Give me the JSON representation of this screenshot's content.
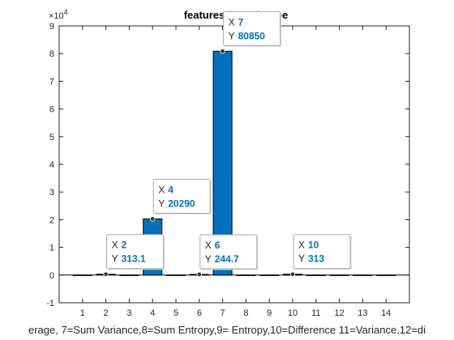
{
  "chart_data": {
    "type": "bar",
    "title": "features for 0 degree",
    "xlabel": "erage, 7=Sum Variance,8=Sum Entropy,9= Entropy,10=Difference 11=Variance,12=di",
    "ylabel": "",
    "y_exponent_label": "×10",
    "y_exponent_power": "4",
    "xlim": [
      0,
      15
    ],
    "ylim": [
      -10000,
      90000
    ],
    "xticks": [
      1,
      2,
      3,
      4,
      5,
      6,
      7,
      8,
      9,
      10,
      11,
      12,
      13,
      14
    ],
    "xtick_labels": [
      "1",
      "2",
      "3",
      "4",
      "5",
      "6",
      "7",
      "8",
      "9",
      "10",
      "11",
      "12",
      "13",
      "14"
    ],
    "yticks": [
      -10000,
      0,
      10000,
      20000,
      30000,
      40000,
      50000,
      60000,
      70000,
      80000,
      90000
    ],
    "ytick_labels": [
      "-1",
      "0",
      "1",
      "2",
      "3",
      "4",
      "5",
      "6",
      "7",
      "8",
      "9"
    ],
    "grid": false,
    "bar_color": "#0072bd",
    "categories": [
      1,
      2,
      3,
      4,
      5,
      6,
      7,
      8,
      9,
      10,
      11,
      12,
      13,
      14
    ],
    "values": [
      0,
      313.1,
      0,
      20290,
      0,
      244.7,
      80850,
      0,
      0,
      313,
      0,
      0,
      0,
      0
    ],
    "datatips": [
      {
        "x": 2,
        "y": 313.1,
        "x_key": "X",
        "y_key": "Y",
        "x_text": "2",
        "y_text": "313.1"
      },
      {
        "x": 4,
        "y": 20290,
        "x_key": "X",
        "y_key": "Y",
        "x_text": "4",
        "y_text": "20290"
      },
      {
        "x": 6,
        "y": 244.7,
        "x_key": "X",
        "y_key": "Y",
        "x_text": "6",
        "y_text": "244.7"
      },
      {
        "x": 7,
        "y": 80850,
        "x_key": "X",
        "y_key": "Y",
        "x_text": "7",
        "y_text": "80850"
      },
      {
        "x": 10,
        "y": 313,
        "x_key": "X",
        "y_key": "Y",
        "x_text": "10",
        "y_text": "313"
      }
    ]
  }
}
